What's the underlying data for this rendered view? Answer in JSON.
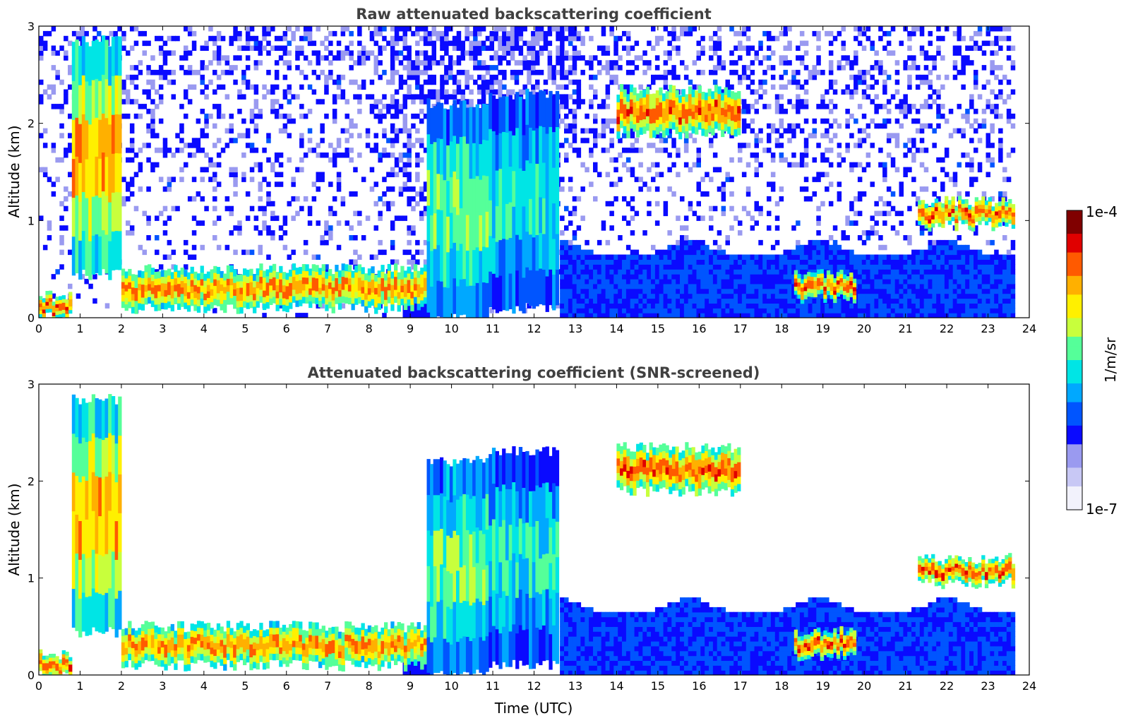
{
  "colormap": [
    "#f2f2fc",
    "#c8c8f5",
    "#9a9af0",
    "#0a0aff",
    "#0055ff",
    "#00a8ff",
    "#00e5e5",
    "#55ff99",
    "#c8ff3c",
    "#fff000",
    "#ffb000",
    "#ff5a00",
    "#e00000",
    "#800000"
  ],
  "colorbar": {
    "label": "1/m/sr",
    "max_label": "1e-4",
    "min_label": "1e-7"
  },
  "chart_data": [
    {
      "type": "heatmap",
      "title": "Raw attenuated backscattering coefficient",
      "xlabel": "",
      "ylabel": "Altitude (km)",
      "xlim": [
        0,
        24
      ],
      "ylim": [
        0,
        3
      ],
      "xticks": [
        0,
        1,
        2,
        3,
        4,
        5,
        6,
        7,
        8,
        9,
        10,
        11,
        12,
        13,
        14,
        15,
        16,
        17,
        18,
        19,
        20,
        21,
        22,
        23,
        24
      ],
      "yticks": [
        0,
        1,
        2,
        3
      ],
      "data_end_time": 23.65,
      "colorbar_range": [
        "1e-7",
        "1e-4"
      ],
      "features": [
        {
          "t0": 0.0,
          "t1": 0.8,
          "base": 0.0,
          "top": 0.22,
          "level": 0.95
        },
        {
          "t0": 0.8,
          "t1": 2.0,
          "base": 0.45,
          "top": 2.85,
          "level": 0.85
        },
        {
          "t0": 2.0,
          "t1": 9.4,
          "base": 0.1,
          "top": 0.5,
          "level": 0.9
        },
        {
          "t0": 9.4,
          "t1": 10.9,
          "base": 0.0,
          "top": 2.2,
          "level": 0.65
        },
        {
          "t0": 10.9,
          "t1": 12.6,
          "base": 0.1,
          "top": 2.3,
          "level": 0.55
        },
        {
          "t0": 14.0,
          "t1": 17.0,
          "base": 1.9,
          "top": 2.35,
          "level": 0.95
        },
        {
          "t0": 18.3,
          "t1": 19.8,
          "base": 0.2,
          "top": 0.45,
          "level": 0.95
        },
        {
          "t0": 21.3,
          "t1": 23.65,
          "base": 0.95,
          "top": 1.2,
          "level": 0.95
        }
      ]
    },
    {
      "type": "heatmap",
      "title": "Attenuated backscattering coefficient (SNR-screened)",
      "xlabel": "Time (UTC)",
      "ylabel": "Altitude (km)",
      "xlim": [
        0,
        24
      ],
      "ylim": [
        0,
        3
      ],
      "xticks": [
        0,
        1,
        2,
        3,
        4,
        5,
        6,
        7,
        8,
        9,
        10,
        11,
        12,
        13,
        14,
        15,
        16,
        17,
        18,
        19,
        20,
        21,
        22,
        23,
        24
      ],
      "yticks": [
        0,
        1,
        2,
        3
      ],
      "data_end_time": 23.65,
      "colorbar_range": [
        "1e-7",
        "1e-4"
      ],
      "features": [
        {
          "t0": 0.0,
          "t1": 0.8,
          "base": 0.0,
          "top": 0.22,
          "level": 0.95
        },
        {
          "t0": 0.8,
          "t1": 2.0,
          "base": 0.45,
          "top": 2.85,
          "level": 0.85
        },
        {
          "t0": 2.0,
          "t1": 9.4,
          "base": 0.1,
          "top": 0.5,
          "level": 0.9
        },
        {
          "t0": 9.4,
          "t1": 10.9,
          "base": 0.0,
          "top": 2.2,
          "level": 0.65
        },
        {
          "t0": 10.9,
          "t1": 12.6,
          "base": 0.1,
          "top": 2.3,
          "level": 0.55
        },
        {
          "t0": 14.0,
          "t1": 17.0,
          "base": 1.9,
          "top": 2.35,
          "level": 0.95
        },
        {
          "t0": 18.3,
          "t1": 19.8,
          "base": 0.2,
          "top": 0.45,
          "level": 0.95
        },
        {
          "t0": 21.3,
          "t1": 23.65,
          "base": 0.95,
          "top": 1.2,
          "level": 0.95
        }
      ]
    }
  ]
}
